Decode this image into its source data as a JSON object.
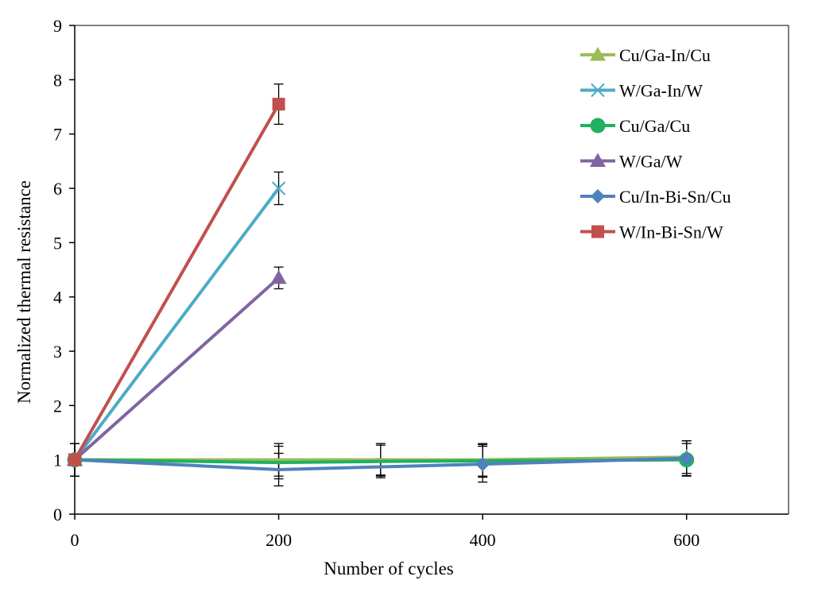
{
  "chart_data": {
    "type": "line",
    "title": "",
    "xlabel": "Number of cycles",
    "ylabel": "Normalized thermal resistance",
    "xlim": [
      0,
      700
    ],
    "ylim": [
      0,
      9
    ],
    "xticks": [
      0,
      200,
      400,
      600
    ],
    "yticks": [
      0,
      1,
      2,
      3,
      4,
      5,
      6,
      7,
      8,
      9
    ],
    "grid": false,
    "legend_position": "top-right",
    "series": [
      {
        "name": "Cu/Ga-In/Cu",
        "color": "#9BBB59",
        "marker": "triangle",
        "points": [
          {
            "x": 0,
            "y": 1.0,
            "err": 0.3
          },
          {
            "x": 200,
            "y": 1.0,
            "err": 0.3
          },
          {
            "x": 300,
            "y": 1.0,
            "err": 0.3
          },
          {
            "x": 400,
            "y": 1.0,
            "err": 0.3
          },
          {
            "x": 600,
            "y": 1.05,
            "err": 0.3
          }
        ]
      },
      {
        "name": "W/Ga-In/W",
        "color": "#4BACC6",
        "marker": "x",
        "points": [
          {
            "x": 0,
            "y": 1.0,
            "err": 0.3
          },
          {
            "x": 200,
            "y": 6.0,
            "err": 0.3
          }
        ]
      },
      {
        "name": "Cu/Ga/Cu",
        "color": "#20B060",
        "marker": "circle",
        "points": [
          {
            "x": 0,
            "y": 1.0,
            "err": 0.3
          },
          {
            "x": 200,
            "y": 0.95,
            "err": 0.3
          },
          {
            "x": 300,
            "y": 0.97,
            "err": 0.3
          },
          {
            "x": 400,
            "y": 0.98,
            "err": 0.3
          },
          {
            "x": 600,
            "y": 1.0,
            "err": 0.3
          }
        ]
      },
      {
        "name": "W/Ga/W",
        "color": "#8064A2",
        "marker": "triangle",
        "points": [
          {
            "x": 0,
            "y": 1.0,
            "err": 0.3
          },
          {
            "x": 200,
            "y": 4.35,
            "err": 0.2
          }
        ]
      },
      {
        "name": "Cu/In-Bi-Sn/Cu",
        "color": "#4F81BD",
        "marker": "diamond",
        "points": [
          {
            "x": 0,
            "y": 1.0,
            "err": 0.3
          },
          {
            "x": 200,
            "y": 0.82,
            "err": 0.3
          },
          {
            "x": 300,
            "y": 0.87,
            "err": 0.15
          },
          {
            "x": 400,
            "y": 0.92,
            "err": 0.33
          },
          {
            "x": 600,
            "y": 1.03,
            "err": 0.32
          }
        ]
      },
      {
        "name": "W/In-Bi-Sn/W",
        "color": "#C0504D",
        "marker": "square",
        "points": [
          {
            "x": 0,
            "y": 1.0,
            "err": 0.3
          },
          {
            "x": 200,
            "y": 7.55,
            "err": 0.37
          }
        ]
      }
    ]
  }
}
